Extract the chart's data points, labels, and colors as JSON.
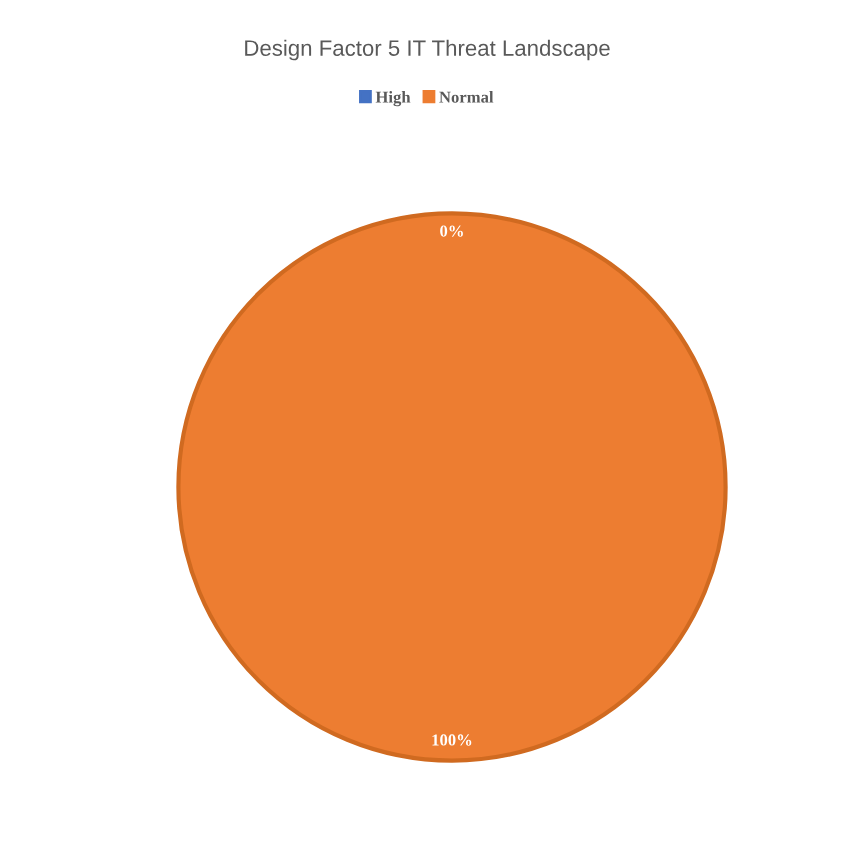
{
  "chart_data": {
    "type": "pie",
    "title": "Design Factor 5 IT Threat Landscape",
    "categories": [
      "High",
      "Normal"
    ],
    "values": [
      0,
      100
    ],
    "colors": [
      "#4472c4",
      "#ed7d31"
    ],
    "value_labels": [
      "0%",
      "100%"
    ],
    "legend": "top"
  }
}
